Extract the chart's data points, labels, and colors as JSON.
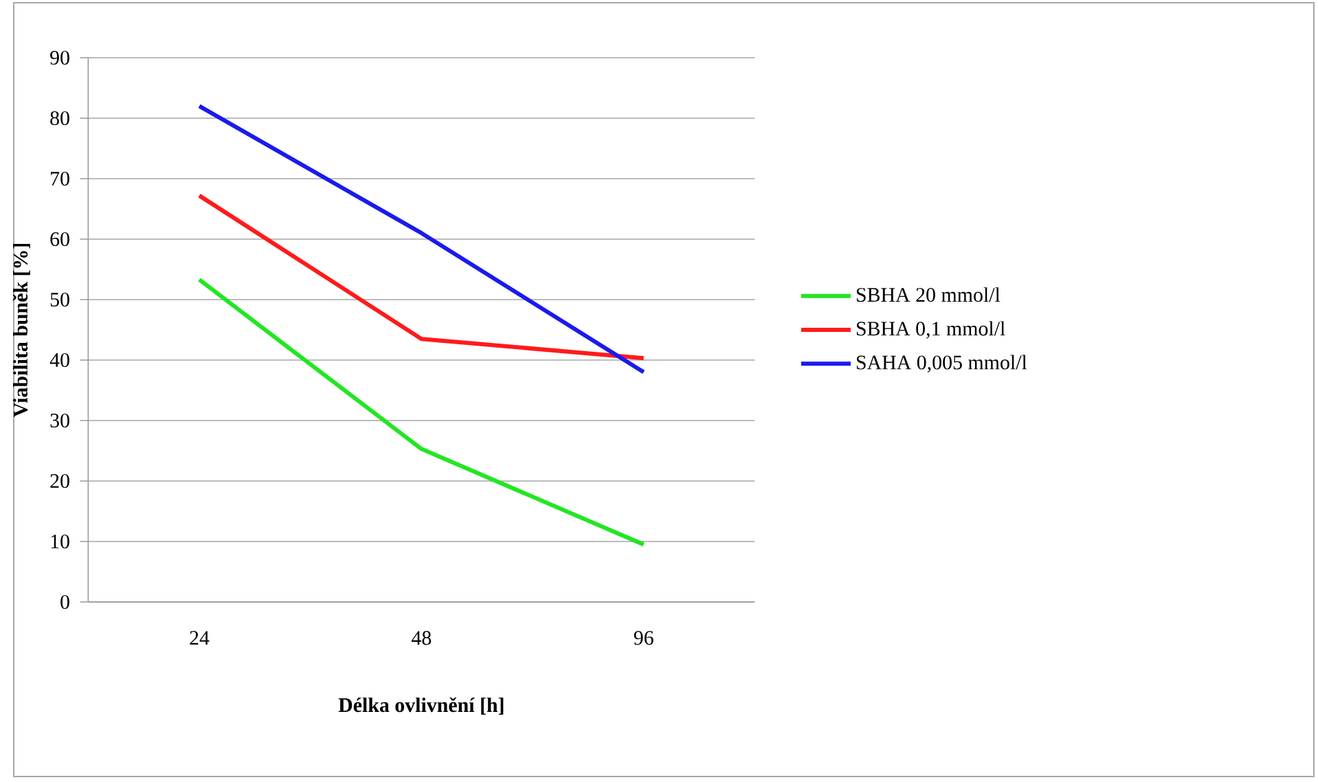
{
  "chart_data": {
    "type": "line",
    "xlabel": "Délka ovlivnění [h]",
    "ylabel": "Viabilita buněk [%]",
    "categories": [
      "24",
      "48",
      "96"
    ],
    "series": [
      {
        "name": "SBHA 20 mmol/l",
        "color": "#22e622",
        "values": [
          53.3,
          25.3,
          9.5
        ]
      },
      {
        "name": "SBHA 0,1 mmol/l",
        "color": "#ff1a1a",
        "values": [
          67.2,
          43.5,
          40.3
        ]
      },
      {
        "name": "SAHA 0,005 mmol/l",
        "color": "#1a1aee",
        "values": [
          82,
          61,
          38
        ]
      }
    ],
    "ylim": [
      0,
      90
    ],
    "yticks": [
      0,
      10,
      20,
      30,
      40,
      50,
      60,
      70,
      80,
      90
    ],
    "grid": "y",
    "legend": "right"
  }
}
